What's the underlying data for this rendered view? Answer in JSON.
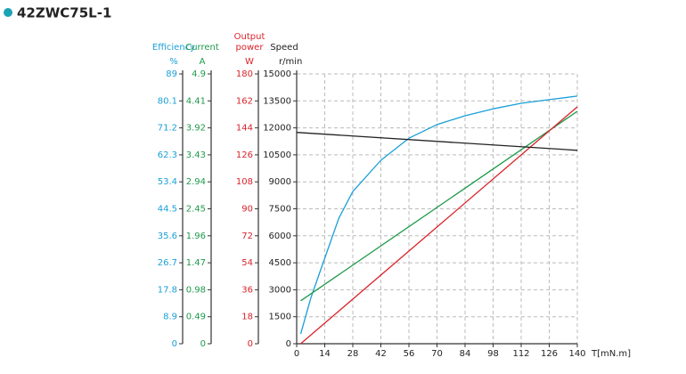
{
  "chart_data": {
    "type": "line",
    "title": "42ZWC75L-1",
    "x_label": "T[mN.m]",
    "xlim": [
      0,
      140
    ],
    "xticks": [
      0,
      14,
      28,
      42,
      56,
      70,
      84,
      98,
      112,
      126,
      140
    ],
    "grid": true,
    "y_axes": [
      {
        "label": [
          "Efficiency"
        ],
        "unit": "%",
        "color": "#1a9fd6",
        "ylim": [
          0,
          89
        ],
        "yticks": [
          0,
          8.9,
          17.8,
          26.7,
          35.6,
          44.5,
          53.4,
          62.3,
          71.2,
          80.1,
          89
        ]
      },
      {
        "label": [
          "Current"
        ],
        "unit": "A",
        "color": "#1e9a4a",
        "ylim": [
          0,
          4.9
        ],
        "yticks": [
          0,
          0.49,
          0.98,
          1.47,
          1.96,
          2.45,
          2.94,
          3.43,
          3.92,
          4.41,
          4.9
        ]
      },
      {
        "label": [
          "Output",
          "power"
        ],
        "unit": "W",
        "color": "#d9232a",
        "ylim": [
          0,
          180
        ],
        "yticks": [
          0,
          18,
          36,
          54,
          72,
          90,
          108,
          126,
          144,
          162,
          180
        ]
      },
      {
        "label": [
          "Speed"
        ],
        "unit": "r/min",
        "color": "#222222",
        "ylim": [
          0,
          15000
        ],
        "yticks": [
          0,
          1500,
          3000,
          4500,
          6000,
          7500,
          9000,
          10500,
          12000,
          13500,
          15000
        ]
      }
    ],
    "series": [
      {
        "color": "#1a9fd6",
        "axis": 0,
        "x": [
          2,
          7,
          14,
          21,
          28,
          42,
          56,
          70,
          84,
          98,
          112,
          126,
          140
        ],
        "values": [
          3.2,
          15,
          28.2,
          41.4,
          50.2,
          60.5,
          67.8,
          72.3,
          75.2,
          77.5,
          79.3,
          80.5,
          81.7
        ]
      },
      {
        "color": "#1e9a4a",
        "axis": 1,
        "x": [
          2,
          140
        ],
        "values": [
          0.78,
          4.22
        ]
      },
      {
        "color": "#d9232a",
        "axis": 2,
        "x": [
          2,
          140
        ],
        "values": [
          0,
          158
        ]
      },
      {
        "color": "#222222",
        "axis": 3,
        "x": [
          0,
          140
        ],
        "values": [
          11750,
          10750
        ]
      }
    ]
  }
}
